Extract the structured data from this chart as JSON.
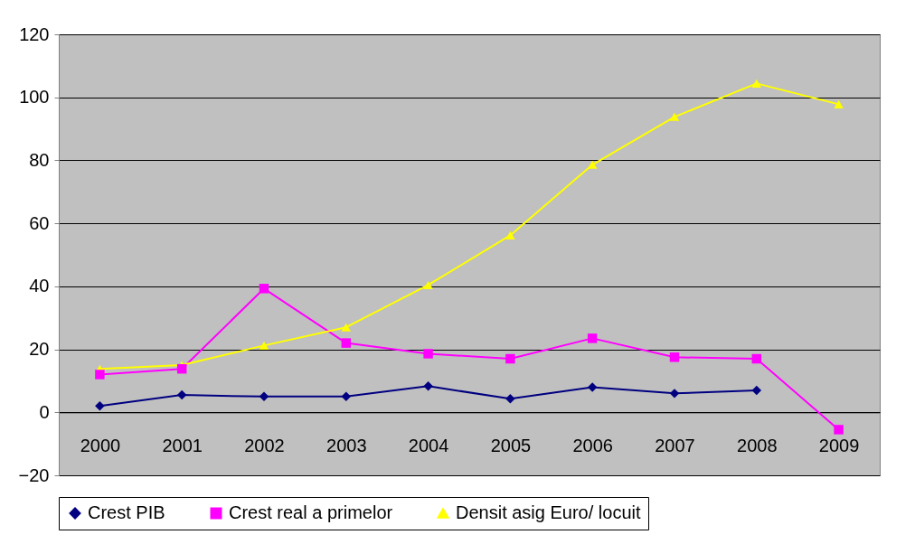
{
  "chart_data": {
    "type": "line",
    "categories": [
      "2000",
      "2001",
      "2002",
      "2003",
      "2004",
      "2005",
      "2006",
      "2007",
      "2008",
      "2009"
    ],
    "series": [
      {
        "name": "Crest  PIB",
        "color": "#000080",
        "marker": "diamond",
        "values": [
          2,
          5.5,
          5,
          5,
          8.3,
          4.3,
          8,
          6,
          7,
          null
        ]
      },
      {
        "name": "Crest real a  primelor",
        "color": "#ff00ff",
        "marker": "square",
        "values": [
          12,
          13.8,
          39.3,
          22,
          18.6,
          17,
          23.5,
          17.5,
          17,
          -5.5
        ]
      },
      {
        "name": "Densit asig Euro/ locuit",
        "color": "#ffff00",
        "marker": "triangle",
        "values": [
          13.8,
          15,
          21.2,
          27,
          40.4,
          56.2,
          78.6,
          93.8,
          104.4,
          97.8
        ]
      }
    ],
    "ylim": [
      -20,
      120
    ],
    "yticks": [
      -20,
      0,
      20,
      40,
      60,
      80,
      100,
      120
    ],
    "grid": "y",
    "legend": "bottom"
  }
}
